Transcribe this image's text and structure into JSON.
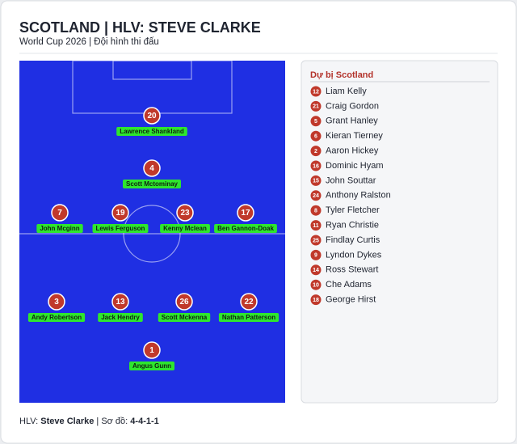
{
  "header": {
    "title": "SCOTLAND | HLV: STEVE CLARKE",
    "subtitle": "World Cup 2026 | Đội hình thi đấu"
  },
  "lineup": [
    {
      "number": "20",
      "name": "Lawrence Shankland"
    },
    {
      "number": "4",
      "name": "Scott Mctominay"
    },
    {
      "number": "7",
      "name": "John Mcginn"
    },
    {
      "number": "19",
      "name": "Lewis Ferguson"
    },
    {
      "number": "23",
      "name": "Kenny Mclean"
    },
    {
      "number": "17",
      "name": "Ben Gannon-Doak"
    },
    {
      "number": "3",
      "name": "Andy Robertson"
    },
    {
      "number": "13",
      "name": "Jack Hendry"
    },
    {
      "number": "26",
      "name": "Scott Mckenna"
    },
    {
      "number": "22",
      "name": "Nathan Patterson"
    },
    {
      "number": "1",
      "name": "Angus Gunn"
    }
  ],
  "bench": {
    "title": "Dự bị Scotland",
    "players": [
      {
        "number": "12",
        "name": "Liam Kelly"
      },
      {
        "number": "21",
        "name": "Craig Gordon"
      },
      {
        "number": "5",
        "name": "Grant Hanley"
      },
      {
        "number": "6",
        "name": "Kieran Tierney"
      },
      {
        "number": "2",
        "name": "Aaron Hickey"
      },
      {
        "number": "16",
        "name": "Dominic Hyam"
      },
      {
        "number": "15",
        "name": "John Souttar"
      },
      {
        "number": "24",
        "name": "Anthony Ralston"
      },
      {
        "number": "8",
        "name": "Tyler Fletcher"
      },
      {
        "number": "11",
        "name": "Ryan Christie"
      },
      {
        "number": "25",
        "name": "Findlay Curtis"
      },
      {
        "number": "9",
        "name": "Lyndon Dykes"
      },
      {
        "number": "14",
        "name": "Ross Stewart"
      },
      {
        "number": "10",
        "name": "Che Adams"
      },
      {
        "number": "18",
        "name": "George Hirst"
      }
    ]
  },
  "footer": {
    "coach_label": "HLV:",
    "coach": "Steve Clarke",
    "separator": "|",
    "formation_label": "Sơ đồ:",
    "formation": "4-4-1-1"
  }
}
